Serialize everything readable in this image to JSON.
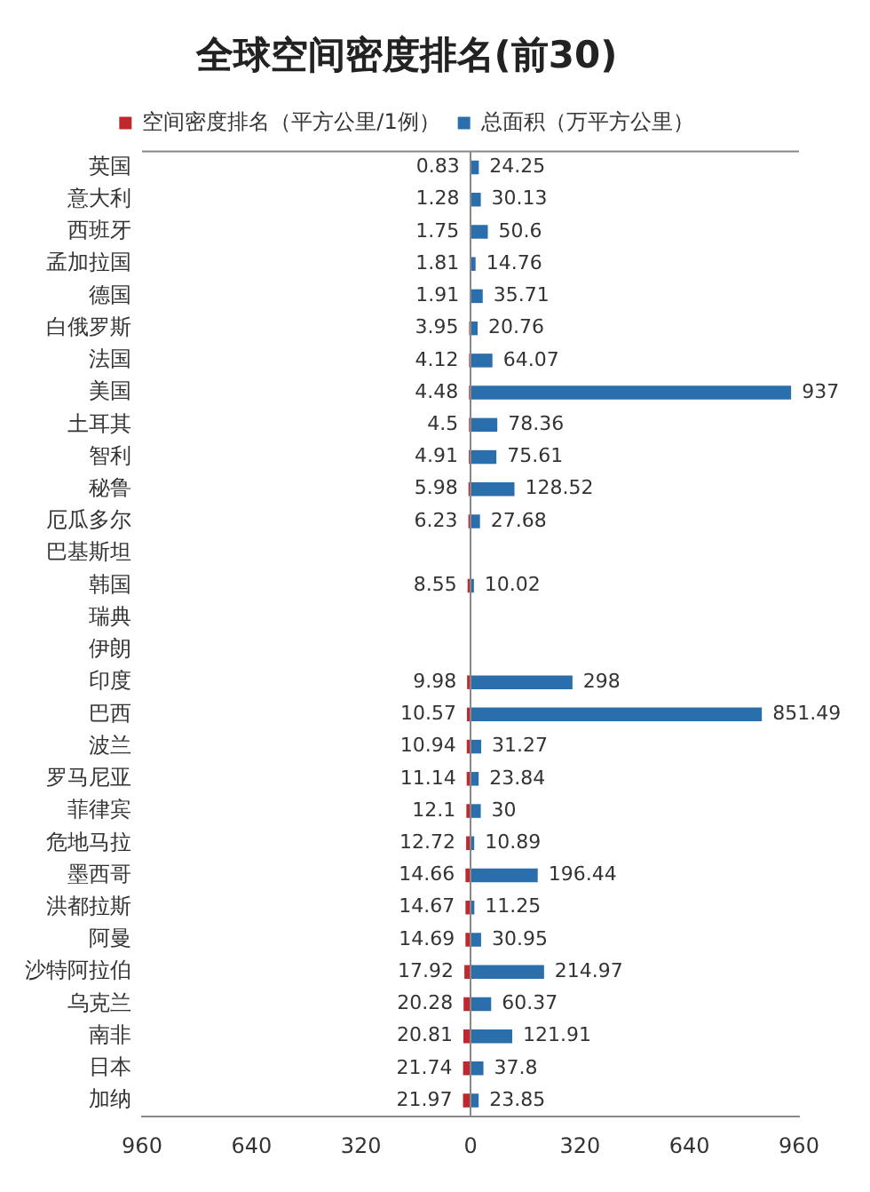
{
  "chart_data": {
    "type": "bar",
    "orientation": "horizontal",
    "title": "全球空间密度排名(前30)",
    "legend": "top",
    "categories": [
      "英国",
      "意大利",
      "西班牙",
      "孟加拉国",
      "德国",
      "白俄罗斯",
      "法国",
      "美国",
      "土耳其",
      "智利",
      "秘鲁",
      "厄瓜多尔",
      "巴基斯坦",
      "韩国",
      "瑞典",
      "伊朗",
      "印度",
      "巴西",
      "波兰",
      "罗马尼亚",
      "菲律宾",
      "危地马拉",
      "墨西哥",
      "洪都拉斯",
      "阿曼",
      "沙特阿拉伯",
      "乌克兰",
      "南非",
      "日本",
      "加纳"
    ],
    "series": [
      {
        "name": "空间密度排名（平方公里/1例）",
        "color": "#c0282d",
        "values": [
          0.83,
          1.28,
          1.75,
          1.81,
          1.91,
          3.95,
          4.12,
          4.48,
          4.5,
          4.91,
          5.98,
          6.23,
          null,
          8.55,
          null,
          null,
          9.98,
          10.57,
          10.94,
          11.14,
          12.1,
          12.72,
          14.66,
          14.67,
          14.69,
          17.92,
          20.28,
          20.81,
          21.74,
          21.97
        ],
        "base": [
          -0.83,
          -1.28,
          -1.75,
          -1.81,
          -1.91,
          -3.95,
          -4.12,
          -4.48,
          -4.5,
          -4.91,
          -5.98,
          -6.23,
          null,
          -8.55,
          null,
          null,
          -9.98,
          -10.57,
          -10.94,
          -11.14,
          -12.1,
          -12.72,
          -14.66,
          -14.67,
          -14.69,
          -17.92,
          -20.28,
          -20.81,
          -21.74,
          -21.97
        ],
        "value_labels": [
          "0.83",
          "1.28",
          "1.75",
          "1.81",
          "1.91",
          "3.95",
          "4.12",
          "4.48",
          "4.5",
          "4.91",
          "5.98",
          "6.23",
          null,
          "8.55",
          null,
          null,
          "9.98",
          "10.57",
          "10.94",
          "11.14",
          "12.1",
          "12.72",
          "14.66",
          "14.67",
          "14.69",
          "17.92",
          "20.28",
          "20.81",
          "21.74",
          "21.97"
        ]
      },
      {
        "name": "总面积（万平方公里）",
        "color": "#2a6fab",
        "values": [
          24.25,
          30.13,
          50.6,
          14.76,
          35.71,
          20.76,
          64.07,
          937,
          78.36,
          75.61,
          128.52,
          27.68,
          null,
          10.02,
          null,
          null,
          298,
          851.49,
          31.27,
          23.84,
          30,
          10.89,
          196.44,
          11.25,
          30.95,
          214.97,
          60.37,
          121.91,
          37.8,
          23.85
        ],
        "value_labels": [
          "24.25",
          "30.13",
          "50.6",
          "14.76",
          "35.71",
          "20.76",
          "64.07",
          "937",
          "78.36",
          "75.61",
          "128.52",
          "27.68",
          null,
          "10.02",
          null,
          null,
          "298",
          "851.49",
          "31.27",
          "23.84",
          "30",
          "10.89",
          "196.44",
          "11.25",
          "30.95",
          "214.97",
          "60.37",
          "121.91",
          "37.8",
          "23.85"
        ]
      }
    ],
    "xlim": [
      -960,
      960
    ],
    "xticks": [
      {
        "value": -960,
        "label": "960"
      },
      {
        "value": -640,
        "label": "640"
      },
      {
        "value": -320,
        "label": "320"
      },
      0,
      320,
      640,
      960
    ],
    "ref_lines": [
      {
        "axis": "x",
        "value": 0
      }
    ],
    "grid": false
  }
}
